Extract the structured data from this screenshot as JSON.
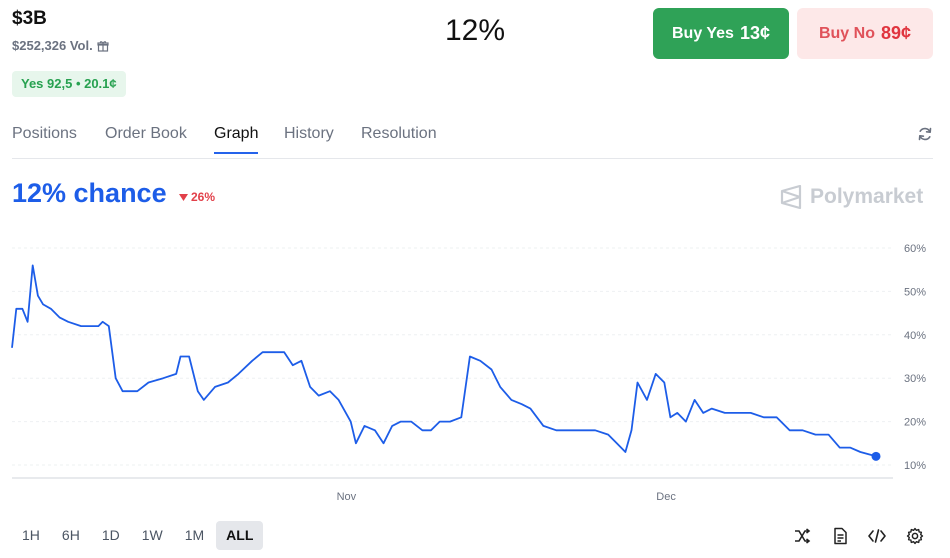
{
  "market": {
    "title": "$3B",
    "volume": "$252,326 Vol.",
    "outcome_pill": "Yes 92,5 • 20.1¢",
    "center_percent": "12%"
  },
  "actions": {
    "buy_yes_label": "Buy Yes",
    "buy_yes_price": "13¢",
    "buy_no_label": "Buy No",
    "buy_no_price": "89¢"
  },
  "tabs": [
    {
      "label": "Positions",
      "active": false
    },
    {
      "label": "Order Book",
      "active": false
    },
    {
      "label": "Graph",
      "active": true
    },
    {
      "label": "History",
      "active": false
    },
    {
      "label": "Resolution",
      "active": false
    }
  ],
  "graph_header": {
    "chance": "12% chance",
    "change": "26%",
    "change_direction": "down",
    "brand": "Polymarket"
  },
  "time_ranges": [
    {
      "label": "1H",
      "active": false
    },
    {
      "label": "6H",
      "active": false
    },
    {
      "label": "1D",
      "active": false
    },
    {
      "label": "1W",
      "active": false
    },
    {
      "label": "1M",
      "active": false
    },
    {
      "label": "ALL",
      "active": true
    }
  ],
  "toolbar_icons": [
    "shuffle-icon",
    "document-icon",
    "code-icon",
    "gear-icon"
  ],
  "colors": {
    "accent": "#1d5de8",
    "yes": "#2fa257",
    "no": "#e0343e",
    "line": "#1d5de8"
  },
  "chart_data": {
    "type": "line",
    "ylim": [
      10,
      60
    ],
    "yticks": [
      "60%",
      "50%",
      "40%",
      "30%",
      "20%",
      "10%"
    ],
    "ytick_values": [
      60,
      50,
      40,
      30,
      20,
      10
    ],
    "xticks": [
      {
        "label": "Nov",
        "x": 0.387
      },
      {
        "label": "Dec",
        "x": 0.757
      }
    ],
    "series": [
      {
        "values": [
          [
            0.0,
            37
          ],
          [
            0.005,
            46
          ],
          [
            0.012,
            46
          ],
          [
            0.018,
            43
          ],
          [
            0.024,
            56
          ],
          [
            0.03,
            49
          ],
          [
            0.036,
            47
          ],
          [
            0.045,
            46
          ],
          [
            0.055,
            44
          ],
          [
            0.065,
            43
          ],
          [
            0.08,
            42
          ],
          [
            0.1,
            42
          ],
          [
            0.105,
            43
          ],
          [
            0.112,
            42
          ],
          [
            0.12,
            30
          ],
          [
            0.128,
            27
          ],
          [
            0.145,
            27
          ],
          [
            0.158,
            29
          ],
          [
            0.175,
            30
          ],
          [
            0.19,
            31
          ],
          [
            0.195,
            35
          ],
          [
            0.205,
            35
          ],
          [
            0.215,
            27
          ],
          [
            0.222,
            25
          ],
          [
            0.235,
            28
          ],
          [
            0.25,
            29
          ],
          [
            0.262,
            31
          ],
          [
            0.278,
            34
          ],
          [
            0.29,
            36
          ],
          [
            0.302,
            36
          ],
          [
            0.315,
            36
          ],
          [
            0.325,
            33
          ],
          [
            0.335,
            34
          ],
          [
            0.345,
            28
          ],
          [
            0.355,
            26
          ],
          [
            0.368,
            27
          ],
          [
            0.378,
            25
          ],
          [
            0.392,
            20
          ],
          [
            0.398,
            15
          ],
          [
            0.408,
            19
          ],
          [
            0.42,
            18
          ],
          [
            0.43,
            15
          ],
          [
            0.44,
            19
          ],
          [
            0.45,
            20
          ],
          [
            0.462,
            20
          ],
          [
            0.475,
            18
          ],
          [
            0.485,
            18
          ],
          [
            0.495,
            20
          ],
          [
            0.507,
            20
          ],
          [
            0.52,
            21
          ],
          [
            0.53,
            35
          ],
          [
            0.542,
            34
          ],
          [
            0.555,
            32
          ],
          [
            0.565,
            28
          ],
          [
            0.578,
            25
          ],
          [
            0.59,
            24
          ],
          [
            0.6,
            23
          ],
          [
            0.615,
            19
          ],
          [
            0.63,
            18
          ],
          [
            0.645,
            18
          ],
          [
            0.66,
            18
          ],
          [
            0.675,
            18
          ],
          [
            0.69,
            17
          ],
          [
            0.7,
            15
          ],
          [
            0.71,
            13
          ],
          [
            0.717,
            18
          ],
          [
            0.724,
            29
          ],
          [
            0.735,
            25
          ],
          [
            0.745,
            31
          ],
          [
            0.755,
            29
          ],
          [
            0.762,
            21
          ],
          [
            0.77,
            22
          ],
          [
            0.78,
            20
          ],
          [
            0.79,
            25
          ],
          [
            0.8,
            22
          ],
          [
            0.81,
            23
          ],
          [
            0.825,
            22
          ],
          [
            0.84,
            22
          ],
          [
            0.855,
            22
          ],
          [
            0.87,
            21
          ],
          [
            0.885,
            21
          ],
          [
            0.9,
            18
          ],
          [
            0.915,
            18
          ],
          [
            0.93,
            17
          ],
          [
            0.945,
            17
          ],
          [
            0.958,
            14
          ],
          [
            0.97,
            14
          ],
          [
            0.982,
            13
          ],
          [
            1.0,
            12
          ]
        ]
      }
    ]
  }
}
